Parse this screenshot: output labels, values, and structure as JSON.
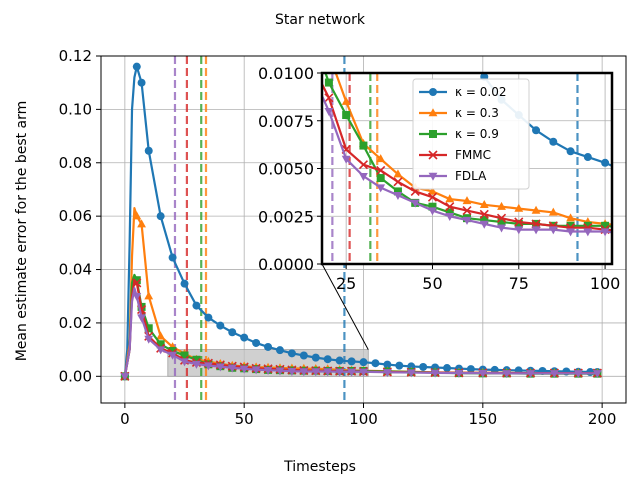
{
  "chart_data": {
    "type": "line",
    "title": "Star network",
    "xlabel": "Timesteps",
    "ylabel": "Mean estimate error for the best arm",
    "xlim": [
      -10,
      210
    ],
    "ylim": [
      -0.01,
      0.12
    ],
    "xticks": [
      0,
      50,
      100,
      150,
      200
    ],
    "yticks": [
      0.0,
      0.02,
      0.04,
      0.06,
      0.08,
      0.1,
      0.12
    ],
    "xtick_labels": [
      "0",
      "50",
      "100",
      "150",
      "200"
    ],
    "ytick_labels": [
      "0.00",
      "0.02",
      "0.04",
      "0.06",
      "0.08",
      "0.10",
      "0.12"
    ],
    "grid": true,
    "legend_position": "inset, upper",
    "series": [
      {
        "name": "κ = 0.02",
        "color": "#1f77b4",
        "marker": "circle",
        "vline_x": 92,
        "x": [
          0,
          1,
          2,
          3,
          4,
          5,
          7,
          10,
          15,
          20,
          25,
          30,
          35,
          40,
          45,
          50,
          55,
          60,
          65,
          70,
          75,
          80,
          85,
          90,
          95,
          100,
          105,
          110,
          115,
          120,
          125,
          130,
          135,
          140,
          145,
          150,
          155,
          160,
          165,
          170,
          175,
          180,
          185,
          190,
          195,
          198
        ],
        "y": [
          0.0,
          0.01,
          0.05,
          0.1,
          0.112,
          0.116,
          0.11,
          0.0845,
          0.06,
          0.0445,
          0.0347,
          0.0265,
          0.022,
          0.019,
          0.0165,
          0.0145,
          0.0125,
          0.011,
          0.0098,
          0.0086,
          0.0078,
          0.007,
          0.0064,
          0.0059,
          0.0056,
          0.0053,
          0.0049,
          0.0044,
          0.004,
          0.0037,
          0.0035,
          0.0033,
          0.0031,
          0.0029,
          0.0027,
          0.0025,
          0.0024,
          0.0023,
          0.0022,
          0.0021,
          0.002,
          0.0019,
          0.0018,
          0.0017,
          0.0016,
          0.0016
        ]
      },
      {
        "name": "κ = 0.3",
        "color": "#ff7f0e",
        "marker": "triangle",
        "vline_x": 34,
        "x": [
          0,
          2,
          3,
          4,
          5,
          7,
          10,
          15,
          20,
          25,
          30,
          35,
          40,
          45,
          50,
          55,
          60,
          65,
          70,
          75,
          80,
          85,
          90,
          95,
          100,
          110,
          120,
          130,
          140,
          150,
          160,
          170,
          180,
          190,
          198
        ],
        "y": [
          0.0,
          0.012,
          0.045,
          0.063,
          0.06,
          0.057,
          0.03,
          0.015,
          0.011,
          0.0085,
          0.0063,
          0.0055,
          0.0047,
          0.004,
          0.0038,
          0.0034,
          0.0033,
          0.0031,
          0.003,
          0.0029,
          0.0028,
          0.0027,
          0.0024,
          0.0022,
          0.0021,
          0.0019,
          0.0017,
          0.0015,
          0.0014,
          0.0013,
          0.0013,
          0.0012,
          0.0012,
          0.0012,
          0.0012
        ]
      },
      {
        "name": "κ = 0.9",
        "color": "#2ca02c",
        "marker": "square",
        "vline_x": 32,
        "x": [
          0,
          2,
          3,
          4,
          5,
          7,
          10,
          15,
          20,
          25,
          30,
          35,
          40,
          45,
          50,
          55,
          60,
          65,
          70,
          75,
          80,
          85,
          90,
          95,
          100,
          110,
          120,
          130,
          140,
          150,
          160,
          170,
          180,
          190,
          198
        ],
        "y": [
          0.0,
          0.01,
          0.035,
          0.038,
          0.036,
          0.026,
          0.018,
          0.012,
          0.0095,
          0.0078,
          0.0062,
          0.0045,
          0.0038,
          0.0032,
          0.003,
          0.0027,
          0.0024,
          0.0023,
          0.0022,
          0.0021,
          0.0021,
          0.002,
          0.002,
          0.002,
          0.002,
          0.0018,
          0.0016,
          0.0014,
          0.0012,
          0.0011,
          0.0011,
          0.001,
          0.001,
          0.001,
          0.001
        ]
      },
      {
        "name": "FMMC",
        "color": "#d62728",
        "marker": "x",
        "vline_x": 26,
        "x": [
          0,
          2,
          3,
          4,
          5,
          7,
          10,
          15,
          20,
          25,
          30,
          35,
          40,
          45,
          50,
          55,
          60,
          65,
          70,
          75,
          80,
          85,
          90,
          95,
          100,
          110,
          120,
          130,
          140,
          150,
          160,
          170,
          180,
          190,
          198
        ],
        "y": [
          0.0,
          0.01,
          0.03,
          0.036,
          0.035,
          0.025,
          0.015,
          0.0105,
          0.0087,
          0.006,
          0.0052,
          0.0049,
          0.0043,
          0.0038,
          0.0035,
          0.003,
          0.0028,
          0.0026,
          0.0024,
          0.0022,
          0.0021,
          0.002,
          0.0019,
          0.0019,
          0.0018,
          0.0016,
          0.0015,
          0.0014,
          0.0013,
          0.0013,
          0.0012,
          0.0012,
          0.0012,
          0.0012,
          0.0012
        ]
      },
      {
        "name": "FDLA",
        "color": "#9467bd",
        "marker": "triangle-down",
        "vline_x": 21,
        "x": [
          0,
          2,
          3,
          4,
          5,
          7,
          10,
          15,
          20,
          25,
          30,
          35,
          40,
          45,
          50,
          55,
          60,
          65,
          70,
          75,
          80,
          85,
          90,
          95,
          100,
          110,
          120,
          130,
          140,
          150,
          160,
          170,
          180,
          190,
          198
        ],
        "y": [
          0.0,
          0.01,
          0.028,
          0.033,
          0.03,
          0.022,
          0.014,
          0.01,
          0.008,
          0.0055,
          0.0046,
          0.004,
          0.0036,
          0.0032,
          0.0028,
          0.0025,
          0.0023,
          0.0021,
          0.0019,
          0.0018,
          0.0018,
          0.0018,
          0.0017,
          0.0017,
          0.0017,
          0.0015,
          0.0014,
          0.0013,
          0.0012,
          0.0012,
          0.0011,
          0.0011,
          0.0011,
          0.0011,
          0.0011
        ]
      }
    ],
    "inset": {
      "xlim": [
        18,
        102
      ],
      "ylim": [
        0.0,
        0.01
      ],
      "xticks": [
        25,
        50,
        75,
        100
      ],
      "yticks": [
        0.0,
        0.0025,
        0.005,
        0.0075,
        0.01
      ],
      "xtick_labels": [
        "25",
        "50",
        "75",
        "100"
      ],
      "ytick_labels": [
        "0.0000",
        "0.0025",
        "0.0050",
        "0.0075",
        "0.0100"
      ]
    }
  }
}
